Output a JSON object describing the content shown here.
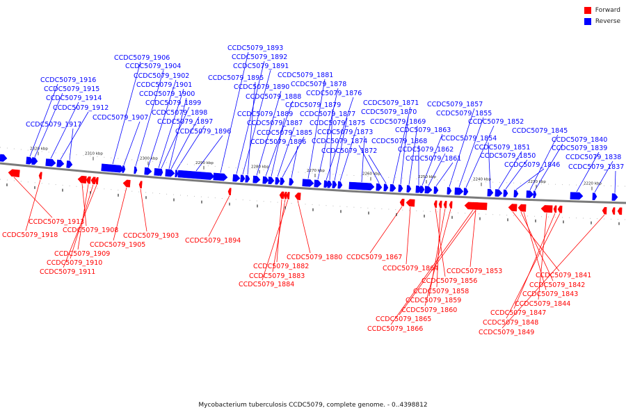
{
  "legend": {
    "forward_label": "Forward",
    "reverse_label": "Reverse",
    "forward_color": "#ff0000",
    "reverse_color": "#0000ff"
  },
  "caption": "Mycobacterium tuberculosis CCDC5079, complete genome. - 0..4398812",
  "scale_labels": [
    "2320 kbp",
    "2310 kbp",
    "2300 kbp",
    "2290 kbp",
    "2280 kbp",
    "2270 kbp",
    "2260 kbp",
    "2250 kbp",
    "2240 kbp",
    "2230 kbp",
    "2220 kbp"
  ],
  "reverse_genes": [
    "CCDC5079_1916",
    "CCDC5079_1915",
    "CCDC5079_1914",
    "CCDC5079_1912",
    "CCDC5079_1917",
    "CCDC5079_1906",
    "CCDC5079_1904",
    "CCDC5079_1902",
    "CCDC5079_1901",
    "CCDC5079_1900",
    "CCDC5079_1907",
    "CCDC5079_1899",
    "CCDC5079_1898",
    "CCDC5079_1897",
    "CCDC5079_1896",
    "CCDC5079_1893",
    "CCDC5079_1892",
    "CCDC5079_1891",
    "CCDC5079_1895",
    "CCDC5079_1890",
    "CCDC5079_1888",
    "CCDC5079_1889",
    "CCDC5079_1887",
    "CCDC5079_1885",
    "CCDC5079_1886",
    "CCDC5079_1881",
    "CCDC5079_1878",
    "CCDC5079_1876",
    "CCDC5079_1879",
    "CCDC5079_1877",
    "CCDC5079_1875",
    "CCDC5079_1873",
    "CCDC5079_1874",
    "CCDC5079_1872",
    "CCDC5079_1871",
    "CCDC5079_1870",
    "CCDC5079_1869",
    "CCDC5079_1868",
    "CCDC5079_1863",
    "CCDC5079_1862",
    "CCDC5079_1861",
    "CCDC5079_1857",
    "CCDC5079_1855",
    "CCDC5079_1852",
    "CCDC5079_1854",
    "CCDC5079_1851",
    "CCDC5079_1850",
    "CCDC5079_1846",
    "CCDC5079_1845",
    "CCDC5079_1840",
    "CCDC5079_1839",
    "CCDC5079_1838",
    "CCDC5079_1837"
  ],
  "forward_genes": [
    "CCDC5079_1913",
    "CCDC5079_1918",
    "CCDC5079_1908",
    "CCDC5079_1909",
    "CCDC5079_1910",
    "CCDC5079_1911",
    "CCDC5079_1905",
    "CCDC5079_1903",
    "CCDC5079_1894",
    "CCDC5079_1882",
    "CCDC5079_1883",
    "CCDC5079_1884",
    "CCDC5079_1880",
    "CCDC5079_1867",
    "CCDC5079_1864",
    "CCDC5079_1856",
    "CCDC5079_1858",
    "CCDC5079_1859",
    "CCDC5079_1860",
    "CCDC5079_1865",
    "CCDC5079_1866",
    "CCDC5079_1853",
    "CCDC5079_1841",
    "CCDC5079_1842",
    "CCDC5079_1843",
    "CCDC5079_1844",
    "CCDC5079_1847",
    "CCDC5079_1848",
    "CCDC5079_1849"
  ]
}
